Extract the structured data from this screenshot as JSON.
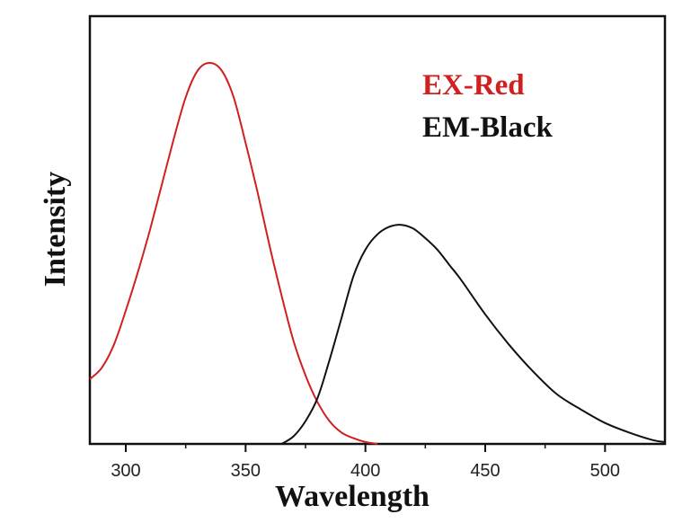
{
  "chart_data": {
    "type": "line",
    "xlabel": "Wavelength",
    "ylabel": "Intensity",
    "xlim": [
      285,
      525
    ],
    "ylim": [
      0,
      1.0
    ],
    "x_ticks": [
      300,
      350,
      400,
      450,
      500
    ],
    "grid": false,
    "legend_placement": "top-right",
    "series": [
      {
        "name": "EX-Red",
        "color": "#d02020",
        "x": [
          285,
          290,
          295,
          300,
          305,
          310,
          315,
          320,
          325,
          330,
          335,
          340,
          345,
          350,
          355,
          360,
          365,
          370,
          375,
          380,
          385,
          390,
          395,
          400,
          405
        ],
        "y": [
          0.17,
          0.2,
          0.26,
          0.35,
          0.45,
          0.56,
          0.68,
          0.8,
          0.91,
          0.98,
          1.0,
          0.98,
          0.91,
          0.79,
          0.66,
          0.52,
          0.39,
          0.27,
          0.18,
          0.11,
          0.06,
          0.03,
          0.015,
          0.005,
          0.0
        ]
      },
      {
        "name": "EM-Black",
        "color": "#111111",
        "x": [
          365,
          370,
          375,
          380,
          385,
          390,
          395,
          400,
          405,
          410,
          415,
          420,
          425,
          430,
          435,
          440,
          450,
          460,
          470,
          480,
          490,
          500,
          510,
          520,
          525
        ],
        "y": [
          0.0,
          0.02,
          0.06,
          0.12,
          0.22,
          0.33,
          0.44,
          0.51,
          0.55,
          0.57,
          0.575,
          0.565,
          0.54,
          0.51,
          0.47,
          0.43,
          0.34,
          0.26,
          0.19,
          0.13,
          0.09,
          0.055,
          0.03,
          0.01,
          0.005
        ]
      }
    ]
  }
}
